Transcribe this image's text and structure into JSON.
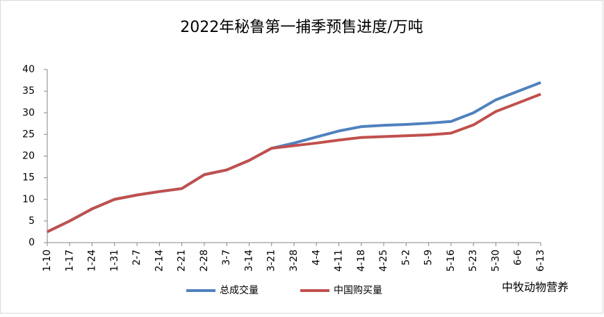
{
  "chart_data": {
    "type": "line",
    "title": "2022年秘鲁第一捕季预售进度/万吨",
    "categories": [
      "1-10",
      "1-17",
      "1-24",
      "1-31",
      "2-7",
      "2-14",
      "2-21",
      "2-28",
      "3-7",
      "3-14",
      "3-21",
      "3-28",
      "4-4",
      "4-11",
      "4-18",
      "4-25",
      "5-2",
      "5-9",
      "5-16",
      "5-23",
      "5-30",
      "6-6",
      "6-13"
    ],
    "series": [
      {
        "name": "总成交量",
        "color": "#4f81bd",
        "values": [
          2.5,
          5,
          7.8,
          10,
          11,
          11.8,
          12.5,
          15.7,
          16.8,
          19,
          21.8,
          23,
          24.4,
          25.8,
          26.8,
          27.1,
          27.3,
          27.6,
          28,
          30,
          33,
          35,
          37
        ]
      },
      {
        "name": "中国购买量",
        "color": "#c0504d",
        "values": [
          2.5,
          5,
          7.8,
          10,
          11,
          11.8,
          12.5,
          15.7,
          16.8,
          19,
          21.8,
          22.4,
          23,
          23.7,
          24.3,
          24.5,
          24.7,
          24.9,
          25.3,
          27.2,
          30.3,
          32.3,
          34.3
        ]
      }
    ],
    "ylim": [
      0,
      40
    ],
    "yticks": [
      0,
      5,
      10,
      15,
      20,
      25,
      30,
      35,
      40
    ],
    "grid": false,
    "legend": "bottom",
    "watermark": "中牧动物营养"
  }
}
